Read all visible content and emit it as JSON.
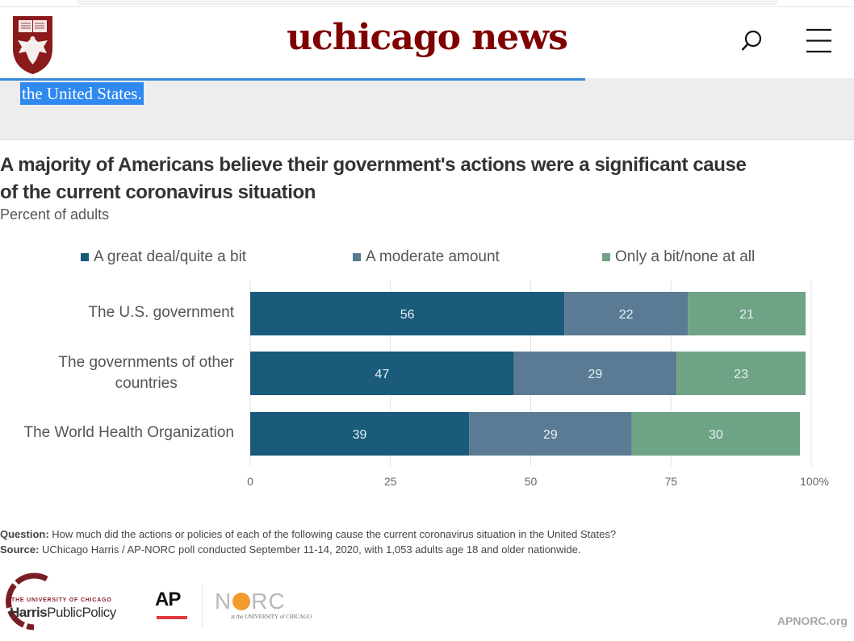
{
  "site": {
    "title": "uchicago news",
    "logo": "university-of-chicago-crest",
    "search_icon": "search-icon",
    "menu_icon": "hamburger-menu-icon"
  },
  "excerpt": {
    "selected_text": "the United States."
  },
  "colors": {
    "brand_maroon": "#800000",
    "series_1": "#1a5a7a",
    "series_2": "#5a7b93",
    "series_3": "#6ea385",
    "selection": "#2f89f0"
  },
  "chart_data": {
    "type": "bar",
    "orientation": "horizontal-stacked",
    "title": "A majority of Americans believe their government's actions were a significant cause of the current coronavirus situation",
    "title_line1": "A majority of Americans believe their government's actions were a significant cause",
    "title_line2": "of the current coronavirus situation",
    "subtitle": "Percent of adults",
    "categories": [
      "The U.S. government",
      "The governments of other countries",
      "The World Health Organization"
    ],
    "category_lines": [
      [
        "The U.S. government"
      ],
      [
        "The governments of other",
        "countries"
      ],
      [
        "The World Health Organization"
      ]
    ],
    "series": [
      {
        "name": "A great deal/quite a bit",
        "color": "#1a5a7a",
        "values": [
          56,
          47,
          39
        ]
      },
      {
        "name": "A moderate amount",
        "color": "#5a7b93",
        "values": [
          22,
          29,
          29
        ]
      },
      {
        "name": "Only a bit/none at all",
        "color": "#6ea385",
        "values": [
          21,
          23,
          30
        ]
      }
    ],
    "xlim": [
      0,
      100
    ],
    "xticks": [
      0,
      25,
      50,
      75,
      100
    ],
    "xtick_labels": [
      "0",
      "25",
      "50",
      "75",
      "100%"
    ],
    "grid": true,
    "legend_position": "top",
    "xlabel": "",
    "ylabel": ""
  },
  "notes": {
    "question_label": "Question:",
    "question_text": " How much did the actions or policies of each of the following cause the current coronavirus situation in the United States?",
    "source_label": "Source:",
    "source_text": " UChicago Harris / AP-NORC poll conducted September 11-14, 2020, with 1,053 adults age 18 and older nationwide."
  },
  "footer": {
    "harris_line1": "THE UNIVERSITY OF CHICAGO",
    "harris_line2a": "Harris",
    "harris_line2b": "PublicPolicy",
    "ap_label": "AP",
    "norc_label_n": "N",
    "norc_label_rc": "RC",
    "norc_sub": "at the UNIVERSITY of CHICAGO",
    "site_link": "APNORC.org"
  }
}
